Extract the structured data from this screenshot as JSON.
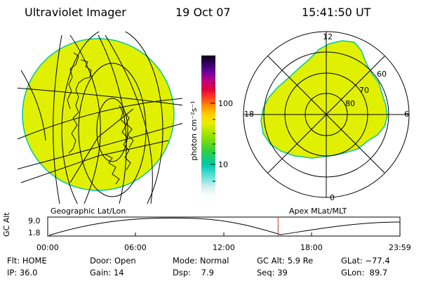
{
  "header": {
    "title": "Ultraviolet Imager",
    "date": "19 Oct 07",
    "time": "15:41:50 UT"
  },
  "colorbar": {
    "label": "photon cm⁻²s⁻¹",
    "tick_100": "100",
    "tick_10": "10"
  },
  "left_image": {
    "caption": "Geographic Lat/Lon",
    "fill_color": "#e0f000",
    "edge_color": "#00c8a0"
  },
  "polar_plot": {
    "caption": "Apex MLat/MLT",
    "mlt_labels": {
      "top": "12",
      "left": "18",
      "right": "6",
      "bottom": "0"
    },
    "lat_labels": {
      "l60": "60",
      "l70": "70",
      "l80": "80"
    },
    "fill_color": "#e0f000"
  },
  "timeline": {
    "axis_label": "GC Alt",
    "y_max": "9.0",
    "y_min": "1.8",
    "ticks": [
      "00:00",
      "06:00",
      "12:00",
      "18:00",
      "23:59"
    ],
    "current_time_fraction": 0.654,
    "marker_color": "#cc3333"
  },
  "info": {
    "row1": [
      "Flt: HOME",
      "Door: Open",
      "Mode: Normal",
      "GC Alt: 5.9 Re",
      "GLat: −77.4"
    ],
    "row2": [
      "IP: 36.0",
      "Gain: 14",
      "Dsp:    7.9",
      "Seq: 39",
      "GLon:  89.7"
    ]
  }
}
